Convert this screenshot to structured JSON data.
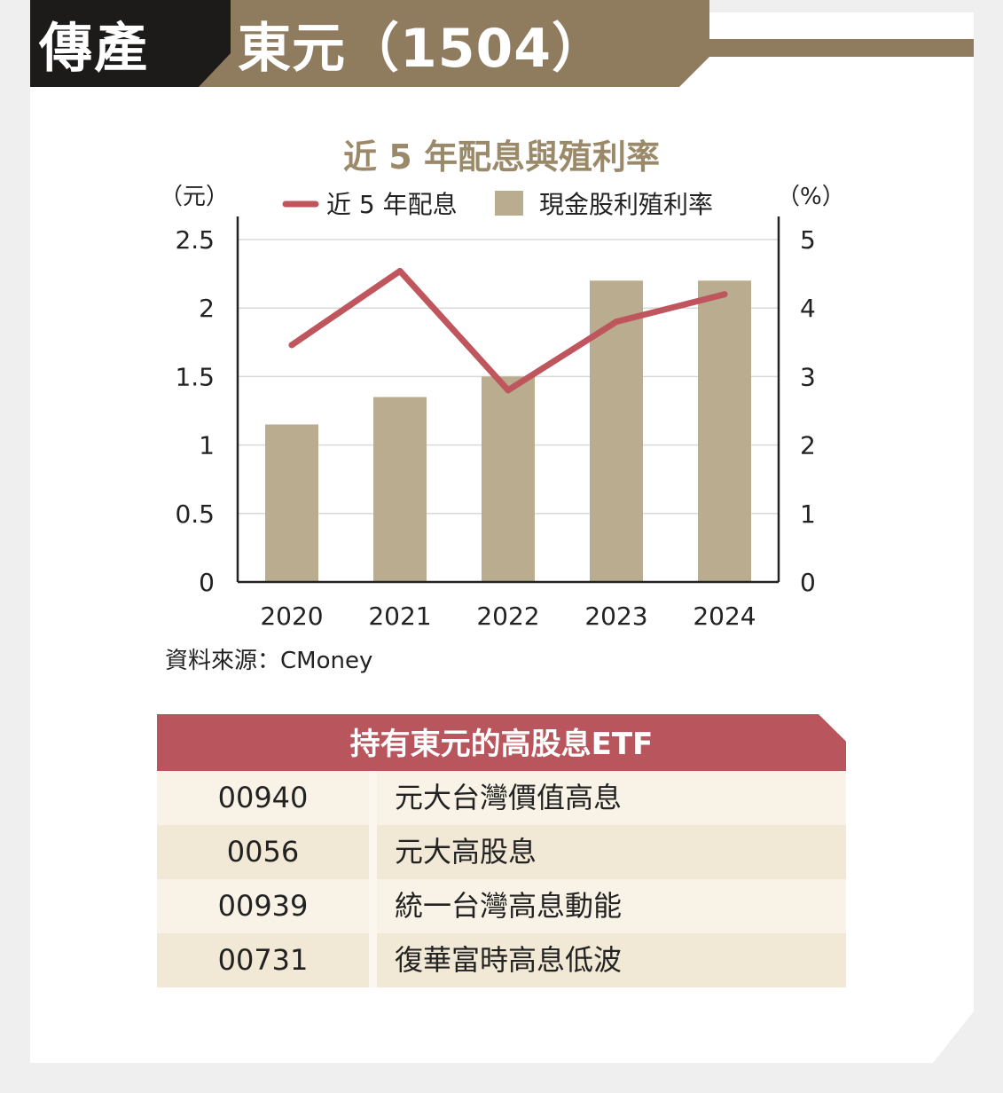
{
  "header": {
    "category": "傳產",
    "company": "東元（1504）"
  },
  "chart_data": {
    "type": "bar",
    "title": "近 5 年配息與殖利率",
    "categories": [
      "2020",
      "2021",
      "2022",
      "2023",
      "2024"
    ],
    "left_axis_unit": "（元）",
    "right_axis_unit": "（%）",
    "left_ylim": [
      0,
      2.5
    ],
    "right_ylim": [
      0,
      5
    ],
    "left_ticks": [
      "0",
      "0.5",
      "1",
      "1.5",
      "2",
      "2.5"
    ],
    "right_ticks": [
      "0",
      "1",
      "2",
      "3",
      "4",
      "5"
    ],
    "grid": true,
    "legend_position": "top",
    "series": [
      {
        "name": "近 5 年配息",
        "kind": "line",
        "axis": "left",
        "color": "#c0565d",
        "values": [
          1.73,
          2.27,
          1.4,
          1.9,
          2.1
        ]
      },
      {
        "name": "現金股利殖利率",
        "kind": "bar",
        "axis": "right",
        "color": "#b9ac8f",
        "values": [
          2.3,
          2.7,
          3.0,
          4.4,
          4.4
        ]
      }
    ]
  },
  "source": "資料來源：CMoney",
  "etf_table": {
    "title": "持有東元的高股息ETF",
    "rows": [
      {
        "code": "00940",
        "name": "元大台灣價值高息"
      },
      {
        "code": "0056",
        "name": "元大高股息"
      },
      {
        "code": "00939",
        "name": "統一台灣高息動能"
      },
      {
        "code": "00731",
        "name": "復華富時高息低波"
      }
    ]
  },
  "colors": {
    "header_black": "#1c1b1a",
    "header_brown": "#8f7c5f",
    "bar": "#b9ac8f",
    "line": "#c0565d",
    "table_header": "#b9555c"
  }
}
